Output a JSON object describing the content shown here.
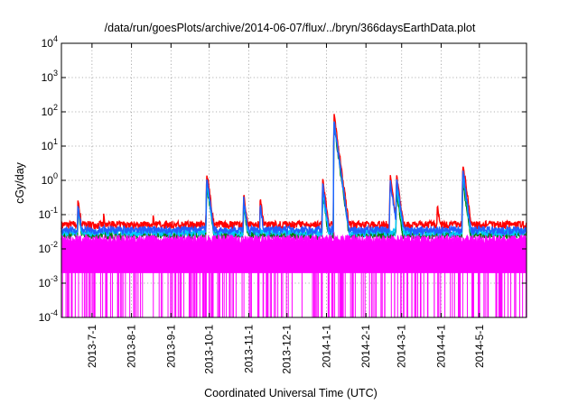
{
  "chart_data": {
    "type": "line",
    "title": "/data/run/goesPlots/archive/2014-06-07/flux/../bryn/366daysEarthData.plot",
    "xlabel": "Coordinated Universal Time (UTC)",
    "ylabel": "cGy/day",
    "yscale": "log",
    "ylim": [
      0.0001,
      10000
    ],
    "xlim": [
      "2013-06-07",
      "2014-06-07"
    ],
    "grid": true,
    "legend": "none",
    "y_ticks": [
      {
        "base": "10",
        "exp": "-4",
        "value": 0.0001
      },
      {
        "base": "10",
        "exp": "-3",
        "value": 0.001
      },
      {
        "base": "10",
        "exp": "-2",
        "value": 0.01
      },
      {
        "base": "10",
        "exp": "-1",
        "value": 0.1
      },
      {
        "base": "10",
        "exp": "0",
        "value": 1
      },
      {
        "base": "10",
        "exp": "1",
        "value": 10
      },
      {
        "base": "10",
        "exp": "2",
        "value": 100
      },
      {
        "base": "10",
        "exp": "3",
        "value": 1000
      },
      {
        "base": "10",
        "exp": "4",
        "value": 10000
      }
    ],
    "x_ticks": [
      {
        "label": "2013-7-1",
        "date": "2013-07-01"
      },
      {
        "label": "2013-8-1",
        "date": "2013-08-01"
      },
      {
        "label": "2013-9-1",
        "date": "2013-09-01"
      },
      {
        "label": "2013-10-1",
        "date": "2013-10-01"
      },
      {
        "label": "2013-11-1",
        "date": "2013-11-01"
      },
      {
        "label": "2013-12-1",
        "date": "2013-12-01"
      },
      {
        "label": "2014-1-1",
        "date": "2014-01-01"
      },
      {
        "label": "2014-2-1",
        "date": "2014-02-01"
      },
      {
        "label": "2014-3-1",
        "date": "2014-03-01"
      },
      {
        "label": "2014-4-1",
        "date": "2014-04-01"
      },
      {
        "label": "2014-5-1",
        "date": "2014-05-01"
      }
    ],
    "series": [
      {
        "color": "#ff0000",
        "baseline": 0.05,
        "peaks": [
          [
            "2013-06-20",
            0.3
          ],
          [
            "2013-07-10",
            0.1
          ],
          [
            "2013-08-18",
            0.1
          ],
          [
            "2013-09-29",
            1.8
          ],
          [
            "2013-10-28",
            0.4
          ],
          [
            "2013-11-10",
            0.3
          ],
          [
            "2013-12-29",
            1.1
          ],
          [
            "2014-01-07",
            80
          ],
          [
            "2014-02-20",
            1.4
          ],
          [
            "2014-02-25",
            1.6
          ],
          [
            "2014-03-29",
            0.2
          ],
          [
            "2014-04-18",
            3.5
          ]
        ]
      },
      {
        "color": "#008000",
        "baseline": 0.025,
        "peaks": [
          [
            "2013-06-20",
            0.15
          ],
          [
            "2013-09-29",
            0.8
          ],
          [
            "2013-10-28",
            0.2
          ],
          [
            "2013-12-29",
            0.4
          ],
          [
            "2014-01-07",
            40
          ],
          [
            "2014-02-25",
            0.5
          ],
          [
            "2014-04-18",
            1.0
          ]
        ]
      },
      {
        "color": "#00c8ff",
        "baseline": 0.03,
        "peaks": [
          [
            "2013-06-20",
            0.18
          ],
          [
            "2013-09-29",
            1.0
          ],
          [
            "2013-10-28",
            0.25
          ],
          [
            "2013-12-29",
            0.5
          ],
          [
            "2014-01-07",
            50
          ],
          [
            "2014-02-25",
            0.8
          ],
          [
            "2014-04-18",
            1.5
          ]
        ]
      },
      {
        "color": "#2060ff",
        "baseline": 0.035,
        "peaks": [
          [
            "2013-06-20",
            0.2
          ],
          [
            "2013-09-29",
            1.2
          ],
          [
            "2013-10-28",
            0.3
          ],
          [
            "2013-11-10",
            0.2
          ],
          [
            "2013-12-29",
            0.8
          ],
          [
            "2014-01-07",
            50
          ],
          [
            "2014-02-20",
            1.0
          ],
          [
            "2014-02-25",
            1.2
          ],
          [
            "2014-04-18",
            2.0
          ]
        ]
      },
      {
        "color": "#ff00ff",
        "baseline": 0.02,
        "floor": 0.002,
        "dropout_min": 0.0001,
        "peaks": [
          [
            "2014-01-07",
            0.03
          ]
        ]
      }
    ]
  }
}
